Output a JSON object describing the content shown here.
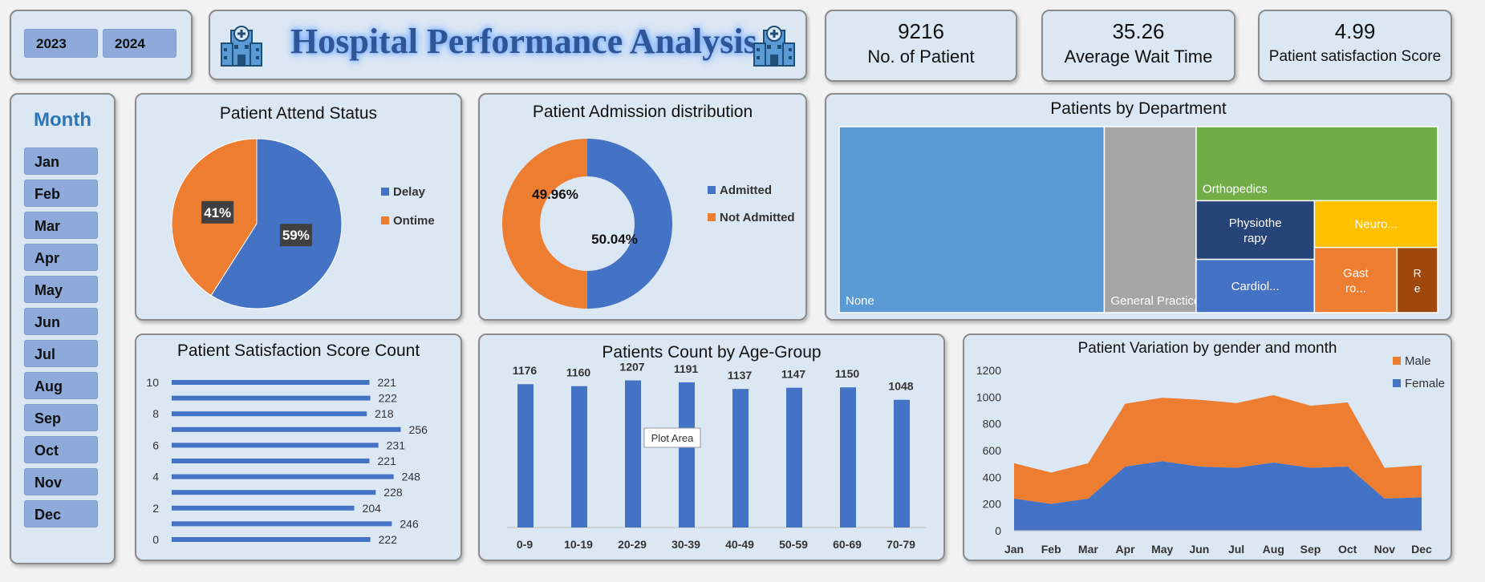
{
  "header": {
    "title": "Hospital Performance Analysis",
    "years": [
      "2023",
      "2024"
    ]
  },
  "kpis": [
    {
      "value": "9216",
      "label": "No. of Patient"
    },
    {
      "value": "35.26",
      "label": "Average Wait Time"
    },
    {
      "value": "4.99",
      "label": "Patient satisfaction Score"
    }
  ],
  "month_slicer": {
    "title": "Month",
    "months": [
      "Jan",
      "Feb",
      "Mar",
      "Apr",
      "May",
      "Jun",
      "Jul",
      "Aug",
      "Sep",
      "Oct",
      "Nov",
      "Dec"
    ]
  },
  "colors": {
    "blue": "#4472c4",
    "orange": "#ed7d31",
    "accent": "#2e75b6",
    "title": "#2f5597"
  },
  "chart_data": [
    {
      "id": "attend",
      "type": "pie",
      "title": "Patient Attend Status",
      "categories": [
        "Delay",
        "Ontime"
      ],
      "values": [
        59,
        41
      ],
      "labels": [
        "59%",
        "41%"
      ],
      "legend": "right"
    },
    {
      "id": "admission",
      "type": "pie",
      "subtype": "donut",
      "title": "Patient Admission distribution",
      "categories": [
        "Admitted",
        "Not Admitted"
      ],
      "values": [
        50.04,
        49.96
      ],
      "labels": [
        "50.04%",
        "49.96%"
      ],
      "legend": "right"
    },
    {
      "id": "department",
      "type": "treemap",
      "title": "Patients by Department",
      "categories": [
        "None",
        "General Practice",
        "Orthopedics",
        "Physiotherapy",
        "Neurology",
        "Cardiology",
        "Gastroenterology",
        "Renal"
      ],
      "display_labels": [
        "None",
        "General Practice",
        "Orthopedics",
        "Physiothe rapy",
        "Neuro...",
        "Cardiol...",
        "Gast ro...",
        "R e"
      ],
      "values": [
        5400,
        1870,
        1960,
        760,
        630,
        690,
        590,
        290
      ]
    },
    {
      "id": "satisfaction",
      "type": "bar",
      "orientation": "horizontal",
      "title": "Patient Satisfaction Score Count",
      "categories": [
        "0",
        "1",
        "2",
        "3",
        "4",
        "5",
        "6",
        "7",
        "8",
        "9",
        "10"
      ],
      "values": [
        222,
        246,
        204,
        228,
        248,
        221,
        231,
        256,
        218,
        222,
        221
      ],
      "tick_labels": [
        "0",
        "2",
        "4",
        "6",
        "8",
        "10"
      ]
    },
    {
      "id": "agegroup",
      "type": "bar",
      "title": "Patients Count by Age-Group",
      "categories": [
        "0-9",
        "10-19",
        "20-29",
        "30-39",
        "40-49",
        "50-59",
        "60-69",
        "70-79"
      ],
      "values": [
        1176,
        1160,
        1207,
        1191,
        1137,
        1147,
        1150,
        1048
      ],
      "tooltip": "Plot Area"
    },
    {
      "id": "gender",
      "type": "area",
      "stacked": true,
      "title": "Patient Variation by gender and month",
      "categories": [
        "Jan",
        "Feb",
        "Mar",
        "Apr",
        "May",
        "Jun",
        "Jul",
        "Aug",
        "Sep",
        "Oct",
        "Nov",
        "Dec"
      ],
      "series": [
        {
          "name": "Female",
          "values": [
            240,
            200,
            240,
            480,
            520,
            480,
            470,
            510,
            470,
            480,
            240,
            250
          ]
        },
        {
          "name": "Male",
          "values": [
            265,
            235,
            265,
            470,
            475,
            500,
            485,
            505,
            465,
            480,
            230,
            240
          ]
        }
      ],
      "ylim": [
        0,
        1200
      ],
      "yticks": [
        0,
        200,
        400,
        600,
        800,
        1000,
        1200
      ],
      "legend": "top-right"
    }
  ]
}
